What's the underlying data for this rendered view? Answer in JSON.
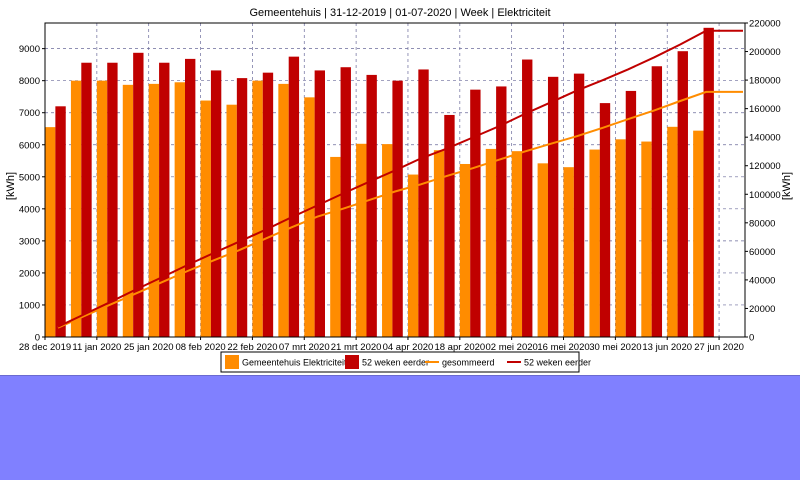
{
  "chart_data": {
    "type": "bar",
    "title": "Gemeentehuis | 31-12-2019 | 01-07-2020 | Week | Elektriciteit",
    "ylabel": "[kWh]",
    "y2label": "[kWh]",
    "ylim": [
      0,
      9800
    ],
    "y2lim": [
      0,
      220000
    ],
    "yticks": [
      0,
      1000,
      2000,
      3000,
      4000,
      5000,
      6000,
      7000,
      8000,
      9000
    ],
    "y2ticks": [
      0,
      20000,
      40000,
      60000,
      80000,
      100000,
      120000,
      140000,
      160000,
      180000,
      200000,
      220000
    ],
    "xtick_labels": [
      "28 dec 2019",
      "11 jan 2020",
      "25 jan 2020",
      "08 feb 2020",
      "22 feb 2020",
      "07 mrt 2020",
      "21 mrt 2020",
      "04 apr 2020",
      "18 apr 2020",
      "02 mei 2020",
      "16 mei 2020",
      "30 mei 2020",
      "13 jun 2020",
      "27 jun 2020"
    ],
    "categories": [
      "2019-12-30",
      "2020-01-06",
      "2020-01-13",
      "2020-01-20",
      "2020-01-27",
      "2020-02-03",
      "2020-02-10",
      "2020-02-17",
      "2020-02-24",
      "2020-03-02",
      "2020-03-09",
      "2020-03-16",
      "2020-03-23",
      "2020-03-30",
      "2020-04-06",
      "2020-04-13",
      "2020-04-20",
      "2020-04-27",
      "2020-05-04",
      "2020-05-11",
      "2020-05-18",
      "2020-05-25",
      "2020-06-01",
      "2020-06-08",
      "2020-06-15",
      "2020-06-22",
      "2020-06-29"
    ],
    "grid": true,
    "legend_position": "bottom",
    "series": [
      {
        "name": "Gemeentehuis Elektriciteit",
        "kind": "bar",
        "axis": "left",
        "color": "#ff8c00",
        "values": [
          6550,
          8000,
          8000,
          7870,
          7900,
          7950,
          7380,
          7250,
          8000,
          7900,
          7480,
          5620,
          6030,
          6020,
          5070,
          5830,
          5400,
          5870,
          5800,
          5420,
          5300,
          5850,
          6170,
          6100,
          6560,
          6440,
          0
        ]
      },
      {
        "name": "52 weken eerder",
        "kind": "bar",
        "axis": "left",
        "color": "#c00000",
        "values": [
          7200,
          8560,
          8560,
          8870,
          8560,
          8680,
          8320,
          8080,
          8250,
          8750,
          8320,
          8420,
          8180,
          8000,
          8350,
          6930,
          7720,
          7820,
          8660,
          8120,
          8220,
          7300,
          7680,
          8450,
          8920,
          9650,
          0
        ]
      },
      {
        "name": "gesommeerd",
        "kind": "line",
        "axis": "right",
        "color": "#ff8c00",
        "values": [
          6550,
          14550,
          22550,
          30420,
          38320,
          46270,
          53650,
          60900,
          68900,
          76800,
          84280,
          89900,
          95930,
          101950,
          107020,
          112850,
          118250,
          124120,
          129920,
          135340,
          140640,
          146490,
          152660,
          158760,
          165320,
          171760,
          171760
        ]
      },
      {
        "name": "52 weken eerder",
        "kind": "line",
        "axis": "right",
        "color": "#c00000",
        "values": [
          7200,
          15760,
          24320,
          33190,
          41750,
          50430,
          58750,
          66830,
          75080,
          83830,
          92150,
          100570,
          108750,
          116750,
          125100,
          132030,
          139750,
          147570,
          156230,
          164350,
          172570,
          179870,
          187550,
          196000,
          204920,
          214570,
          214570
        ]
      }
    ]
  }
}
